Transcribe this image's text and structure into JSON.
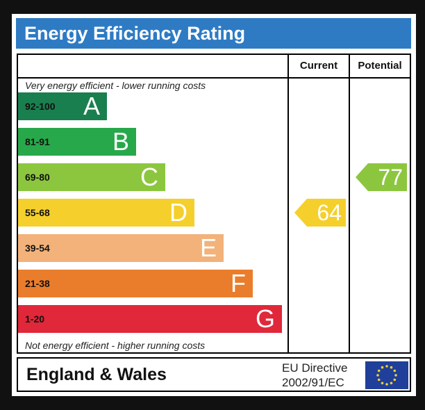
{
  "title": "Energy Efficiency Rating",
  "columns": {
    "current": "Current",
    "potential": "Potential"
  },
  "top_note": "Very energy efficient - lower running costs",
  "bottom_note": "Not energy efficient - higher running costs",
  "bands": [
    {
      "range": "92-100",
      "letter": "A",
      "color": "#1a7f4e"
    },
    {
      "range": "81-91",
      "letter": "B",
      "color": "#27a84a"
    },
    {
      "range": "69-80",
      "letter": "C",
      "color": "#8cc63f"
    },
    {
      "range": "55-68",
      "letter": "D",
      "color": "#f5d02c"
    },
    {
      "range": "39-54",
      "letter": "E",
      "color": "#f2b27a"
    },
    {
      "range": "21-38",
      "letter": "F",
      "color": "#ea7d2c"
    },
    {
      "range": "1-20",
      "letter": "G",
      "color": "#e0283a"
    }
  ],
  "current_rating": {
    "value": "64",
    "band": "D",
    "color": "#f5d02c"
  },
  "potential_rating": {
    "value": "77",
    "band": "C",
    "color": "#8cc63f"
  },
  "footer": {
    "region": "England & Wales",
    "directive_line1": "EU Directive",
    "directive_line2": "2002/91/EC"
  },
  "colors": {
    "title_bar": "#2e7bc4",
    "eu_flag": "#1f3f9a",
    "eu_stars": "#f5d02c"
  }
}
